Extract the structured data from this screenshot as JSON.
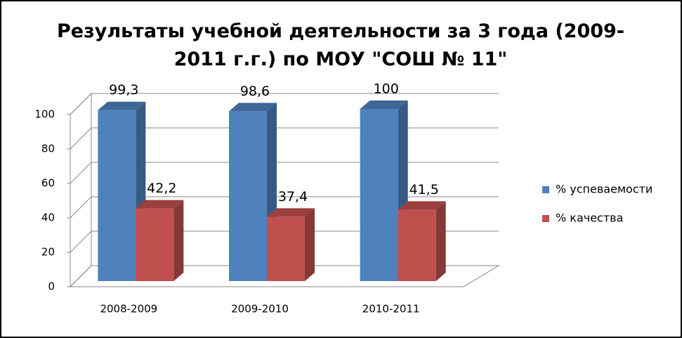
{
  "chart_data": {
    "type": "bar",
    "title": "Результаты учебной деятельности за 3 года (2009-2011 г.г.) по МОУ \"СОШ № 11\"",
    "categories": [
      "2008-2009",
      "2009-2010",
      "2010-2011"
    ],
    "series": [
      {
        "name": "% успеваемости",
        "color": "#4f81bd",
        "values": [
          99.3,
          98.6,
          100
        ],
        "value_labels": [
          "99,3",
          "98,6",
          "100"
        ]
      },
      {
        "name": "% качества",
        "color": "#c0504d",
        "values": [
          42.2,
          37.4,
          41.5
        ],
        "value_labels": [
          "42,2",
          "37,4",
          "41,5"
        ]
      }
    ],
    "ylim": [
      0,
      100
    ],
    "yticks": [
      0,
      20,
      40,
      60,
      80,
      100
    ],
    "grid": true,
    "legend": "right"
  }
}
